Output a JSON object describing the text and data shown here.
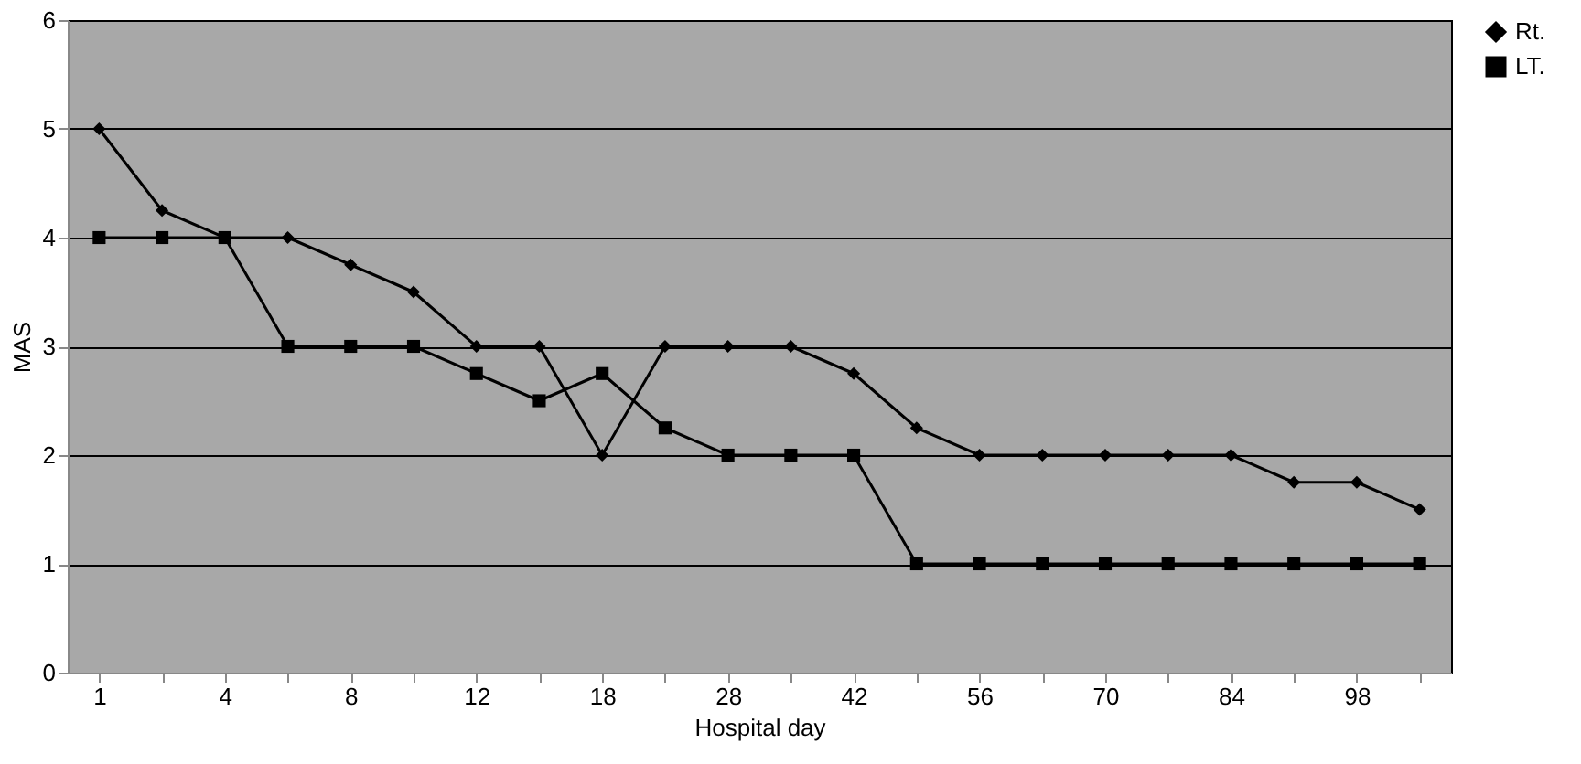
{
  "chart_data": {
    "type": "line",
    "xlabel": "Hospital day",
    "ylabel": "MAS",
    "categories": [
      "1",
      null,
      "4",
      null,
      "8",
      null,
      "12",
      null,
      "18",
      null,
      "28",
      null,
      "42",
      null,
      "56",
      null,
      "70",
      null,
      "84",
      null,
      "98",
      null
    ],
    "series": [
      {
        "name": "Rt.",
        "color": "#000000",
        "marker": "diamond",
        "values": [
          5,
          4.25,
          4,
          4,
          3.75,
          3.5,
          3,
          3,
          2,
          3,
          3,
          3,
          2.75,
          2.25,
          2,
          2,
          2,
          2,
          2,
          1.75,
          1.75,
          1.5
        ]
      },
      {
        "name": "LT.",
        "color": "#000000",
        "marker": "square",
        "values": [
          4,
          4,
          4,
          3,
          3,
          3,
          2.75,
          2.5,
          2.75,
          2.25,
          2,
          2,
          2,
          1,
          1,
          1,
          1,
          1,
          1,
          1,
          1,
          1
        ]
      }
    ],
    "ylim": [
      0,
      6
    ],
    "yticks": [
      0,
      1,
      2,
      3,
      4,
      5,
      6
    ],
    "grid": "y",
    "legend": "right",
    "line_style": "solid"
  }
}
